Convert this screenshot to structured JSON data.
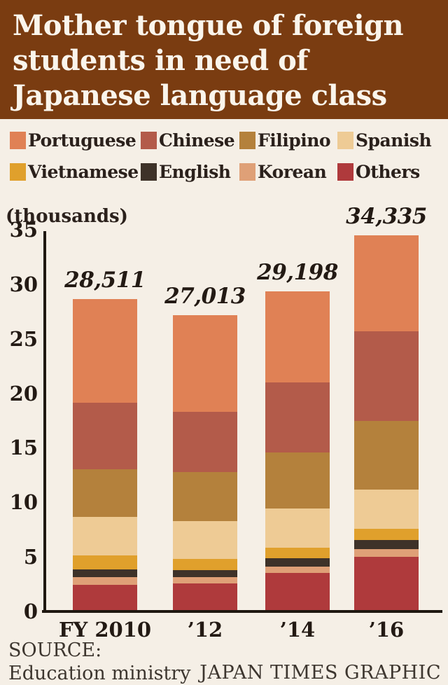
{
  "header": {
    "title": "Mother tongue of foreign\nstudents in need of\nJapanese language class"
  },
  "units_label": "(thousands)",
  "chart_data": {
    "type": "bar",
    "subtype": "stacked-vertical",
    "categories": [
      "FY 2010",
      "’12",
      "’14",
      "’16"
    ],
    "totals": [
      28511,
      27013,
      29198,
      34335
    ],
    "totals_labels": [
      "28,511",
      "27,013",
      "29,198",
      "34,335"
    ],
    "values_unit": "thousands",
    "stack_order": "first series on top, last series at bottom",
    "series": [
      {
        "name": "Portuguese",
        "color": "#e08155",
        "values": [
          9.477,
          8.848,
          8.34,
          8.779
        ]
      },
      {
        "name": "Chinese",
        "color": "#b35b4a",
        "values": [
          6.154,
          5.515,
          6.41,
          8.204
        ]
      },
      {
        "name": "Filipino",
        "color": "#b4813c",
        "values": [
          4.35,
          4.495,
          5.153,
          6.283
        ]
      },
      {
        "name": "Spanish",
        "color": "#eecb95",
        "values": [
          3.547,
          3.48,
          3.576,
          3.6
        ]
      },
      {
        "name": "Vietnamese",
        "color": "#e0a02c",
        "values": [
          1.24,
          1.02,
          1.0,
          1.037
        ]
      },
      {
        "name": "English",
        "color": "#3e3229",
        "values": [
          0.75,
          0.67,
          0.76,
          0.863
        ]
      },
      {
        "name": "Korean",
        "color": "#dfa077",
        "values": [
          0.68,
          0.55,
          0.58,
          0.712
        ]
      },
      {
        "name": "Others",
        "color": "#af3a3c",
        "values": [
          2.31,
          2.44,
          3.38,
          4.857
        ]
      }
    ],
    "title": "Mother tongue of foreign students in need of Japanese language class",
    "xlabel": "",
    "ylabel": "(thousands)",
    "ylim": [
      0,
      35
    ],
    "yticks": [
      0,
      5,
      10,
      15,
      20,
      25,
      30,
      35
    ],
    "grid": false,
    "legend_position": "top"
  },
  "footer": {
    "source": "SOURCE:\nEducation ministry",
    "credit": "JAPAN TIMES GRAPHIC"
  },
  "colors": {
    "background": "#f5efe6",
    "header_background": "#7a3c11",
    "title_text": "#faf5ec",
    "body_text": "#2b211c",
    "axis": "#1f1811",
    "footer_text": "#3d362f"
  }
}
